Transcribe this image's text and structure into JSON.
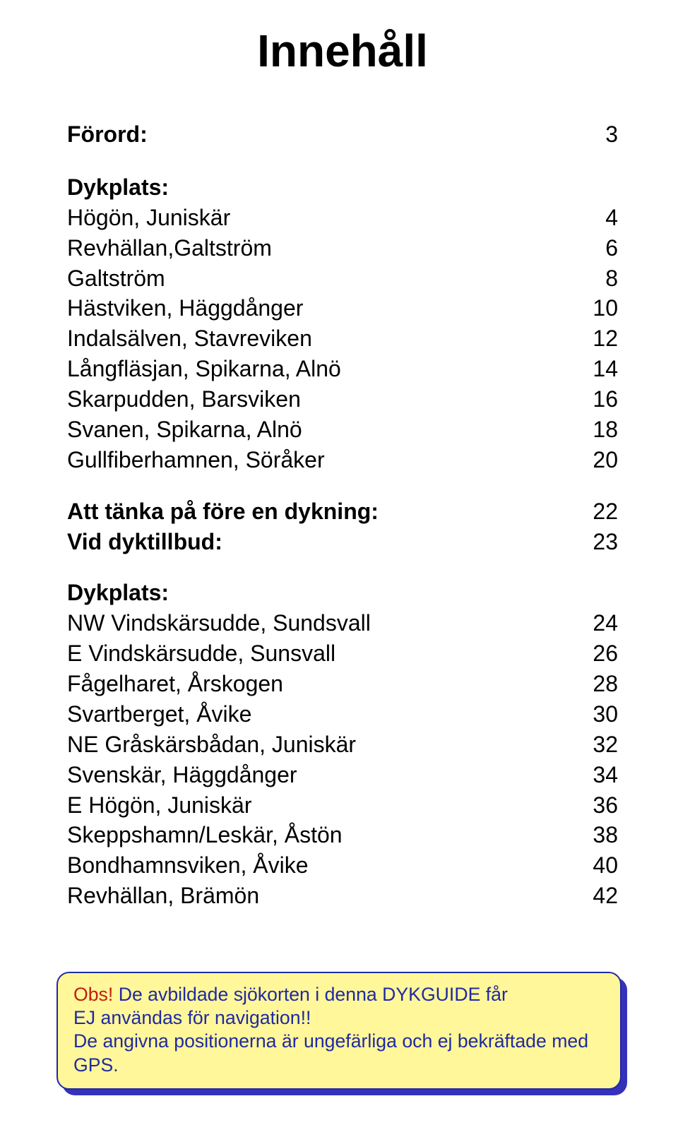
{
  "style": {
    "body_font_size_pt": 24,
    "body_line_height": 1.34,
    "title_font_size_pt": 48,
    "text_color": "#000000",
    "notice_text_color": "#202aa0",
    "notice_red_color": "#c01f12",
    "notice_bg": "#fff79a",
    "notice_border": "#202aa0",
    "notice_border_width": 2,
    "notice_shadow_color": "#3432bb",
    "notice_font_size_pt": 20,
    "notice_line_height": 1.25
  },
  "title": "Innehåll",
  "sections": [
    {
      "header": "Förord:",
      "header_page": 3,
      "items": []
    },
    {
      "header": "Dykplats:",
      "items": [
        {
          "label": "Högön, Juniskär",
          "page": 4
        },
        {
          "label": "Revhällan,Galtström",
          "page": 6
        },
        {
          "label": "Galtström",
          "page": 8
        },
        {
          "label": "Hästviken, Häggdånger",
          "page": 10
        },
        {
          "label": "Indalsälven, Stavreviken",
          "page": 12
        },
        {
          "label": "Långfläsjan, Spikarna, Alnö",
          "page": 14
        },
        {
          "label": "Skarpudden, Barsviken",
          "page": 16
        },
        {
          "label": "Svanen, Spikarna, Alnö",
          "page": 18
        },
        {
          "label": "Gullfiberhamnen, Söråker",
          "page": 20
        }
      ]
    },
    {
      "header": null,
      "items": [
        {
          "label": "Att tänka på före en dykning:",
          "page": 22,
          "bold": true
        },
        {
          "label": "Vid dyktillbud:",
          "page": 23,
          "bold": true
        }
      ]
    },
    {
      "header": "Dykplats:",
      "items": [
        {
          "label": "NW Vindskärsudde, Sundsvall",
          "page": 24
        },
        {
          "label": "E Vindskärsudde, Sunsvall",
          "page": 26
        },
        {
          "label": "Fågelharet, Årskogen",
          "page": 28
        },
        {
          "label": "Svartberget, Åvike",
          "page": 30
        },
        {
          "label": "NE Gråskärsbådan, Juniskär",
          "page": 32
        },
        {
          "label": "Svenskär, Häggdånger",
          "page": 34
        },
        {
          "label": "E Högön, Juniskär",
          "page": 36
        },
        {
          "label": "Skeppshamn/Leskär, Åstön",
          "page": 38
        },
        {
          "label": "Bondhamnsviken, Åvike",
          "page": 40
        },
        {
          "label": "Revhällan, Brämön",
          "page": 42
        }
      ]
    }
  ],
  "notice": {
    "line1_a": "Obs!",
    "line1_b": " De avbildade sjökorten i denna DYKGUIDE får",
    "line2": "EJ användas för navigation!!",
    "line3": "De angivna positionerna är ungefärliga och ej bekräftade med GPS."
  }
}
